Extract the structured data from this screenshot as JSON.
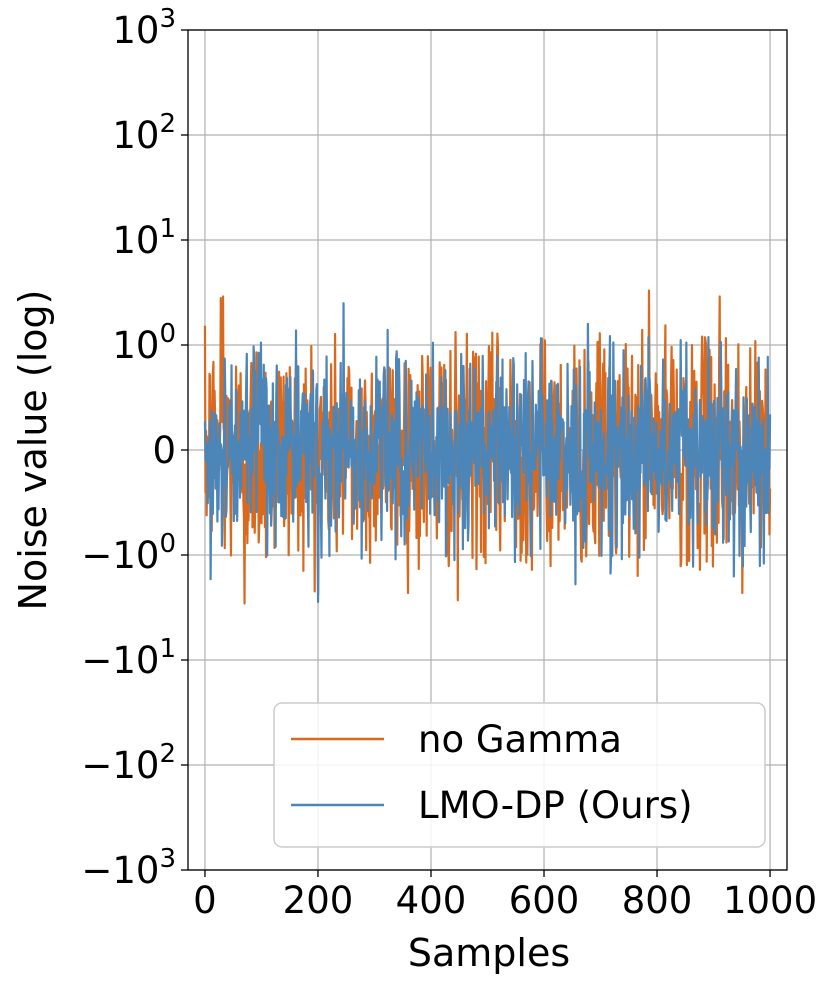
{
  "chart_data": {
    "type": "line",
    "title": "",
    "xlabel": "Samples",
    "ylabel": "Noise value (log)",
    "xlim": [
      -30,
      1030
    ],
    "xticks": [
      0,
      200,
      400,
      600,
      800,
      1000
    ],
    "xtick_labels": [
      "0",
      "200",
      "400",
      "600",
      "800",
      "1000"
    ],
    "yscale": "symlog",
    "ylim": [
      -1000,
      1000
    ],
    "yticks": [
      -1000,
      -100,
      -10,
      -1,
      0,
      1,
      10,
      100,
      1000
    ],
    "ytick_labels": [
      {
        "sign": "−",
        "base": "10",
        "exp": "3"
      },
      {
        "sign": "−",
        "base": "10",
        "exp": "2"
      },
      {
        "sign": "−",
        "base": "10",
        "exp": "1"
      },
      {
        "sign": "−",
        "base": "10",
        "exp": "0"
      },
      {
        "sign": "",
        "base": "0",
        "exp": ""
      },
      {
        "sign": "",
        "base": "10",
        "exp": "0"
      },
      {
        "sign": "",
        "base": "10",
        "exp": "1"
      },
      {
        "sign": "",
        "base": "10",
        "exp": "2"
      },
      {
        "sign": "",
        "base": "10",
        "exp": "3"
      }
    ],
    "grid": true,
    "legend_position": "bottom-right",
    "x_range": [
      0,
      1000
    ],
    "n_points": 1000,
    "series": [
      {
        "name": "no Gamma",
        "color": "#d9691e",
        "note": "noise samples, roughly within ±2, extreme peaks",
        "peaks": [
          [
            28,
            2.8
          ],
          [
            32,
            2.9
          ],
          [
            70,
            -2.9
          ],
          [
            200,
            -2.4
          ],
          [
            447,
            -2.7
          ],
          [
            785,
            3.3
          ],
          [
            910,
            2.9
          ],
          [
            950,
            -2.3
          ]
        ]
      },
      {
        "name": "LMO-DP (Ours)",
        "color": "#4c86b8",
        "note": "noise samples, roughly within ±2, extreme peaks",
        "peaks": [
          [
            200,
            -2.8
          ],
          [
            245,
            2.5
          ],
          [
            10,
            -1.7
          ],
          [
            655,
            -1.9
          ],
          [
            935,
            -1.6
          ]
        ]
      }
    ]
  },
  "legend": {
    "items": [
      "no Gamma",
      "LMO-DP (Ours)"
    ]
  }
}
